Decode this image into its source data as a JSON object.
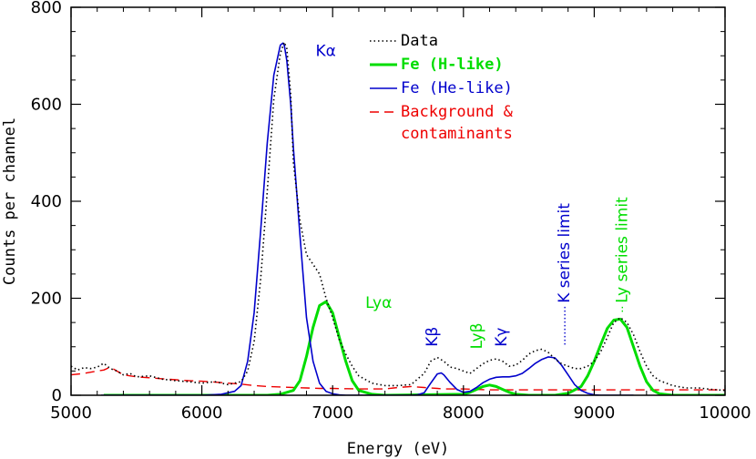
{
  "chart_data": {
    "type": "line",
    "title": "",
    "xlabel": "Energy (eV)",
    "ylabel": "Counts per channel",
    "xlim": [
      5000,
      10000
    ],
    "ylim": [
      0,
      800
    ],
    "xticks": [
      5000,
      6000,
      7000,
      8000,
      9000,
      10000
    ],
    "xtick_labels": [
      "5000",
      "6000",
      "7000",
      "8000",
      "9000",
      "10000"
    ],
    "yticks": [
      0,
      200,
      400,
      600,
      800
    ],
    "ytick_labels": [
      "0",
      "200",
      "400",
      "600",
      "800"
    ],
    "grid": false,
    "legend_position": "top-right",
    "legend": [
      {
        "label": "Data",
        "color": "#000000",
        "style": "dotted",
        "series": "data"
      },
      {
        "label": "Fe (H-like)",
        "color": "#00dd00",
        "style": "thick",
        "series": "fe_h"
      },
      {
        "label": "Fe (He-like)",
        "color": "#0000cc",
        "style": "solid",
        "series": "fe_he"
      },
      {
        "label": "Background &",
        "label2": "contaminants",
        "color": "#ee0000",
        "style": "dashed",
        "series": "background"
      }
    ],
    "series": {
      "data": {
        "name": "Data",
        "color": "#000000",
        "style": "dotted",
        "x": [
          5000,
          5050,
          5100,
          5150,
          5200,
          5250,
          5300,
          5350,
          5400,
          5450,
          5500,
          5600,
          5700,
          5800,
          5900,
          6000,
          6100,
          6200,
          6300,
          6350,
          6400,
          6450,
          6500,
          6550,
          6600,
          6630,
          6650,
          6680,
          6700,
          6750,
          6800,
          6850,
          6900,
          6950,
          7000,
          7050,
          7100,
          7150,
          7200,
          7300,
          7400,
          7500,
          7600,
          7700,
          7750,
          7800,
          7850,
          7900,
          7950,
          8000,
          8050,
          8100,
          8150,
          8200,
          8250,
          8300,
          8350,
          8400,
          8450,
          8500,
          8550,
          8600,
          8650,
          8700,
          8750,
          8800,
          8850,
          8900,
          8950,
          9000,
          9050,
          9100,
          9150,
          9200,
          9250,
          9300,
          9350,
          9400,
          9450,
          9500,
          9600,
          9700,
          9800,
          9900,
          10000
        ],
        "y": [
          60,
          52,
          57,
          55,
          58,
          66,
          55,
          50,
          42,
          45,
          38,
          40,
          33,
          30,
          28,
          25,
          28,
          22,
          28,
          50,
          110,
          240,
          420,
          610,
          705,
          728,
          715,
          620,
          480,
          360,
          290,
          270,
          250,
          200,
          160,
          115,
          85,
          60,
          40,
          25,
          20,
          20,
          22,
          45,
          70,
          78,
          70,
          58,
          55,
          50,
          45,
          55,
          65,
          72,
          75,
          70,
          60,
          62,
          72,
          85,
          92,
          95,
          88,
          75,
          65,
          60,
          55,
          55,
          60,
          70,
          90,
          120,
          150,
          160,
          150,
          125,
          90,
          60,
          40,
          30,
          20,
          15,
          15,
          12,
          10
        ]
      },
      "fe_he": {
        "name": "Fe (He-like)",
        "color": "#0000cc",
        "style": "solid",
        "x": [
          5230,
          6000,
          6150,
          6250,
          6300,
          6350,
          6400,
          6450,
          6500,
          6550,
          6600,
          6620,
          6630,
          6650,
          6680,
          6700,
          6750,
          6800,
          6850,
          6900,
          6950,
          7000,
          7050,
          7100,
          7500,
          7600,
          7650,
          7700,
          7750,
          7800,
          7830,
          7850,
          7900,
          7950,
          8000,
          8050,
          8100,
          8150,
          8200,
          8250,
          8300,
          8350,
          8400,
          8450,
          8500,
          8550,
          8600,
          8650,
          8680,
          8700,
          8750,
          8800,
          8850,
          8900,
          8950,
          9000,
          9050,
          9100,
          9200,
          9300
        ],
        "y": [
          0,
          0,
          2,
          8,
          20,
          70,
          170,
          340,
          520,
          660,
          722,
          726,
          722,
          690,
          600,
          510,
          330,
          160,
          70,
          25,
          8,
          3,
          1,
          0,
          0,
          0,
          1,
          5,
          25,
          44,
          46,
          42,
          26,
          12,
          6,
          8,
          16,
          26,
          33,
          37,
          38,
          38,
          40,
          45,
          55,
          66,
          74,
          79,
          78,
          77,
          62,
          42,
          22,
          10,
          4,
          1,
          0,
          0,
          0,
          0
        ]
      },
      "fe_h": {
        "name": "Fe (H-like)",
        "color": "#00dd00",
        "style": "thick",
        "x": [
          5250,
          6500,
          6600,
          6700,
          6750,
          6800,
          6850,
          6900,
          6950,
          7000,
          7050,
          7100,
          7150,
          7200,
          7300,
          7400,
          8000,
          8050,
          8100,
          8150,
          8200,
          8250,
          8300,
          8350,
          8400,
          8500,
          8700,
          8800,
          8900,
          8950,
          9000,
          9050,
          9100,
          9150,
          9200,
          9250,
          9300,
          9350,
          9400,
          9450,
          9500,
          9600,
          10000
        ],
        "y": [
          0,
          0,
          2,
          10,
          30,
          80,
          140,
          185,
          193,
          170,
          120,
          70,
          30,
          10,
          2,
          0,
          2,
          6,
          12,
          18,
          21,
          18,
          12,
          6,
          2,
          0,
          0,
          4,
          18,
          40,
          70,
          105,
          138,
          155,
          157,
          140,
          100,
          60,
          28,
          10,
          3,
          0,
          0
        ]
      },
      "background": {
        "name": "Background & contaminants",
        "color": "#ee0000",
        "style": "dashed",
        "x": [
          5000,
          5100,
          5200,
          5250,
          5300,
          5350,
          5400,
          5450,
          5500,
          5600,
          5700,
          5800,
          5900,
          6000,
          6100,
          6200,
          6300,
          6400,
          6500,
          6600,
          6700,
          6800,
          6900,
          7000,
          7200,
          7400,
          7500,
          7600,
          7700,
          7800,
          7850,
          7900,
          8000,
          8100,
          8200,
          8400,
          8600,
          8800,
          9000,
          9200,
          9400,
          9600,
          9800,
          10000
        ],
        "y": [
          42,
          45,
          50,
          52,
          58,
          50,
          42,
          40,
          38,
          36,
          34,
          32,
          30,
          29,
          27,
          25,
          23,
          20,
          18,
          17,
          16,
          15,
          14,
          14,
          13,
          13,
          16,
          18,
          16,
          14,
          13,
          13,
          13,
          12,
          11,
          11,
          11,
          11,
          11,
          11,
          11,
          11,
          11,
          11
        ]
      }
    },
    "annotations": [
      {
        "text": "Kα",
        "color": "#0000cc",
        "x": 6870,
        "y": 700
      },
      {
        "text": "Lyα",
        "color": "#00dd00",
        "x": 7250,
        "y": 180
      },
      {
        "text": "Kβ",
        "color": "#0000cc",
        "x": 7800,
        "y": 100,
        "rotated": true
      },
      {
        "text": "Lyβ",
        "color": "#00dd00",
        "x": 8140,
        "y": 95,
        "rotated": true
      },
      {
        "text": "Kγ",
        "color": "#0000cc",
        "x": 8330,
        "y": 100,
        "rotated": true
      },
      {
        "text": "K series limit",
        "color": "#0000cc",
        "x": 8810,
        "y": 190,
        "rotated": true,
        "leader_to": 100
      },
      {
        "text": "Ly series limit",
        "color": "#00dd00",
        "x": 9250,
        "y": 190,
        "rotated": true,
        "leader_to": 170
      }
    ]
  }
}
